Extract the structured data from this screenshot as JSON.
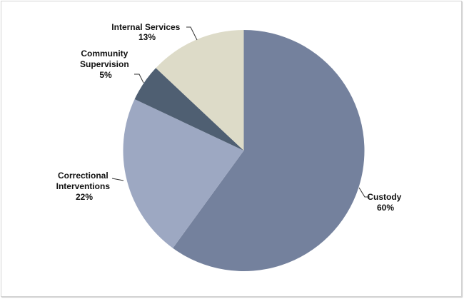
{
  "chart_data": {
    "type": "pie",
    "title": "",
    "start_angle_deg": 0,
    "direction": "clockwise",
    "slices": [
      {
        "label": "Custody",
        "value": 60,
        "pct_label": "60%",
        "color": "#74819D"
      },
      {
        "label": "Correctional Interventions",
        "value": 22,
        "pct_label": "22%",
        "color": "#9DA8C2"
      },
      {
        "label": "Community Supervision",
        "value": 5,
        "pct_label": "5%",
        "color": "#4F5F72"
      },
      {
        "label": "Internal Services",
        "value": 13,
        "pct_label": "13%",
        "color": "#DDDBC8"
      }
    ],
    "legend": "none",
    "data_labels": "outside with leader lines"
  },
  "labels": {
    "custody": {
      "name": "Custody",
      "pct": "60%"
    },
    "correctional": {
      "line1": "Correctional",
      "line2": "Interventions",
      "pct": "22%"
    },
    "community": {
      "line1": "Community",
      "line2": "Supervision",
      "pct": "5%"
    },
    "internal": {
      "name": "Internal Services",
      "pct": "13%"
    }
  }
}
